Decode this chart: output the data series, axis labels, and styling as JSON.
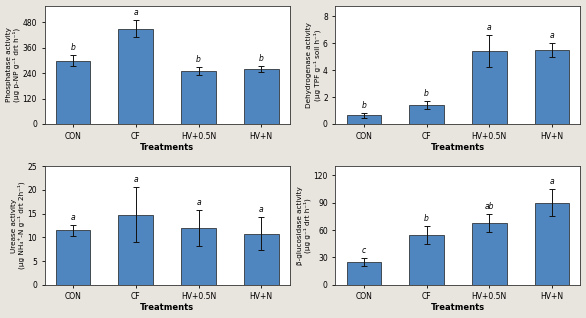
{
  "categories": [
    "CON",
    "CF",
    "HV+0.5N",
    "HV+N"
  ],
  "phosphatase": {
    "values": [
      300,
      450,
      250,
      260
    ],
    "errors": [
      25,
      40,
      18,
      15
    ],
    "letters": [
      "b",
      "a",
      "b",
      "b"
    ],
    "ylabel": "Phosphatase activity\n(μg p-NP g⁻¹ drt h⁻¹)",
    "ylim": [
      0,
      560
    ],
    "yticks": [
      0,
      120,
      240,
      360,
      480
    ]
  },
  "dehydrogenase": {
    "values": [
      0.65,
      1.4,
      5.4,
      5.5
    ],
    "errors": [
      0.18,
      0.3,
      1.2,
      0.5
    ],
    "letters": [
      "b",
      "b",
      "a",
      "a"
    ],
    "ylabel": "Dehydrogenase activity\n(μg TPF g⁻¹ soil h⁻¹)",
    "ylim": [
      0,
      8.8
    ],
    "yticks": [
      0,
      2,
      4,
      6,
      8
    ]
  },
  "urease": {
    "values": [
      11.5,
      14.8,
      12.0,
      10.8
    ],
    "errors": [
      1.2,
      5.8,
      3.8,
      3.5
    ],
    "letters": [
      "a",
      "a",
      "a",
      "a"
    ],
    "ylabel": "Urease activity\n(μg NH₄⁺-N g⁻¹ drt 2h⁻¹)",
    "ylim": [
      0,
      25
    ],
    "yticks": [
      0,
      5,
      10,
      15,
      20,
      25
    ]
  },
  "glucosidase": {
    "values": [
      25,
      55,
      68,
      90
    ],
    "errors": [
      4,
      10,
      10,
      15
    ],
    "letters": [
      "c",
      "b",
      "ab",
      "a"
    ],
    "ylabel": "β-glucosidase activity\n(μg g⁻¹ drt h⁻¹)",
    "ylim": [
      0,
      130
    ],
    "yticks": [
      0,
      30,
      60,
      90,
      120
    ]
  },
  "bar_color": "#4f86c0",
  "bar_width": 0.55,
  "xlabel": "Treatments",
  "background_color": "#e8e4de",
  "plot_bg": "#ffffff",
  "edgecolor": "#1a1a1a",
  "errorbar_color": "#111111",
  "letter_fontsize": 5.5,
  "axis_label_fontsize": 5.2,
  "tick_fontsize": 5.5,
  "xlabel_fontsize": 6.0
}
